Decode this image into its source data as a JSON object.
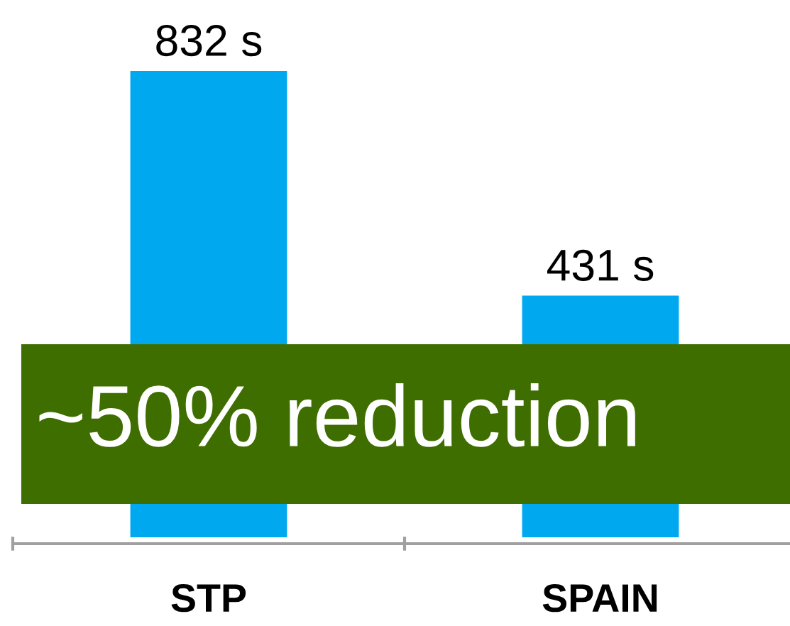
{
  "chart_data": {
    "type": "bar",
    "categories": [
      "STP",
      "SPAIN"
    ],
    "values": [
      832,
      431
    ],
    "color": "#00a8f0",
    "value_labels": [
      "832 s",
      "431 s"
    ],
    "annotations": [
      "~50% reduction"
    ]
  }
}
